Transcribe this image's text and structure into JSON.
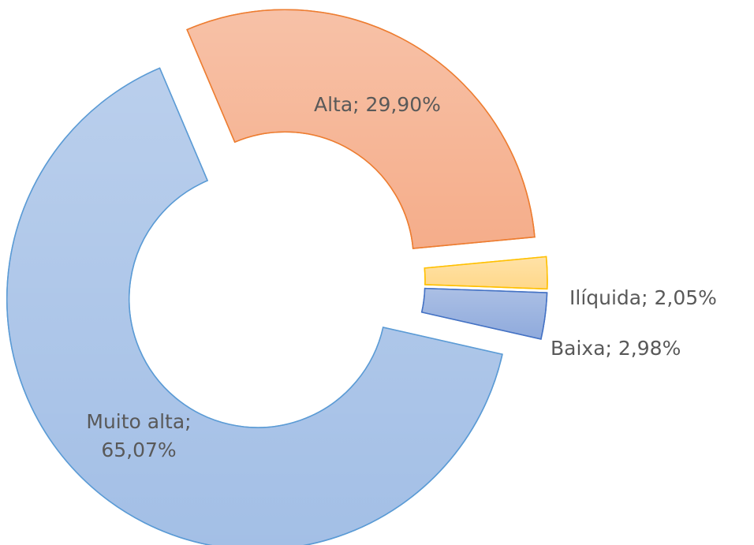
{
  "chart_data": {
    "type": "pie",
    "donut": true,
    "values": [
      29.9,
      2.05,
      2.98,
      65.07
    ],
    "value_labels": [
      "Alta; 29,90%",
      "Ilíquida; 2,05%",
      "Baixa; 2,98%",
      "Muito alta; 65,07%"
    ],
    "colors": [
      "#f5ad8a",
      "#ffd88a",
      "#8faadc",
      "#a3bfe6"
    ],
    "edge_colors": [
      "#ed7d31",
      "#ffc000",
      "#4472c4",
      "#5b9bd5"
    ]
  }
}
